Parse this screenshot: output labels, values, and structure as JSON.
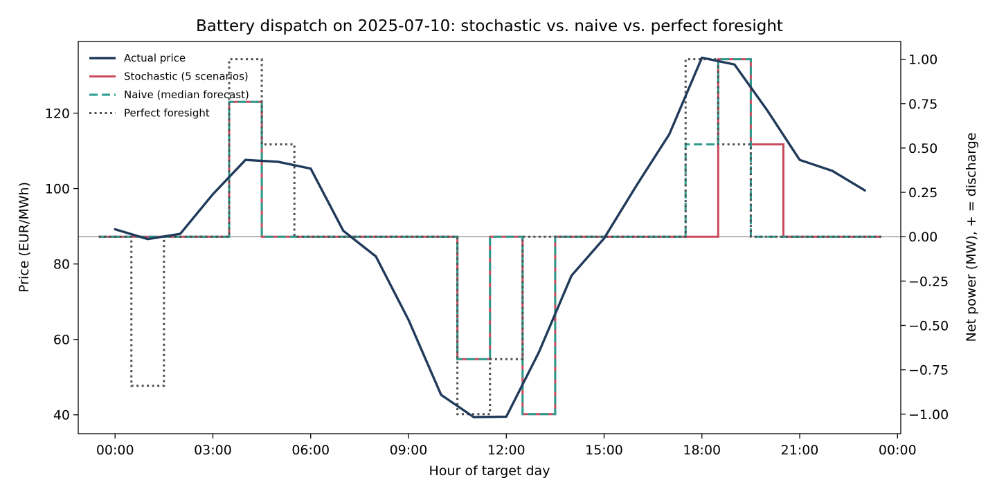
{
  "chart_data": {
    "type": "line",
    "title": "Battery dispatch on 2025-07-10: stochastic vs. naive vs. perfect foresight",
    "xlabel": "Hour of target day",
    "ylabel_left": "Price (EUR/MWh)",
    "ylabel_right": "Net power (MW), + = discharge",
    "x_ticks": [
      "00:00",
      "03:00",
      "06:00",
      "09:00",
      "12:00",
      "15:00",
      "18:00",
      "21:00",
      "00:00"
    ],
    "x_tick_hours": [
      0,
      3,
      6,
      9,
      12,
      15,
      18,
      21,
      24
    ],
    "xlim_hours": [
      -1.13,
      24.1
    ],
    "ylim_left": [
      35,
      139
    ],
    "y_ticks_left": [
      40,
      60,
      80,
      100,
      120
    ],
    "ylim_right": [
      -1.11,
      1.1
    ],
    "y_ticks_right": [
      -1.0,
      -0.75,
      -0.5,
      -0.25,
      0.0,
      0.25,
      0.5,
      0.75,
      1.0
    ],
    "y_tick_labels_right": [
      "−1.00",
      "−0.75",
      "−0.50",
      "−0.25",
      "0.00",
      "0.25",
      "0.50",
      "0.75",
      "1.00"
    ],
    "zero_line": 0,
    "grid": false,
    "legend_position": "top-left",
    "price": {
      "name": "Actual price",
      "color": "#1f3a5a",
      "hours": [
        0,
        1,
        2,
        3,
        4,
        5,
        6,
        7,
        8,
        9,
        10,
        11,
        12,
        13,
        14,
        15,
        16,
        17,
        18,
        19,
        20,
        21,
        22,
        23
      ],
      "values": [
        89.2,
        86.6,
        88.0,
        98.5,
        107.6,
        107.1,
        105.3,
        88.8,
        82.0,
        65.2,
        45.3,
        39.4,
        39.5,
        56.6,
        76.9,
        86.8,
        100.9,
        114.4,
        134.7,
        132.9,
        120.8,
        107.6,
        104.7,
        99.5
      ]
    },
    "dispatch": [
      {
        "name": "Stochastic (5 scenarios)",
        "color": "#c9485b",
        "style": "solid",
        "values": [
          0,
          0,
          0,
          0,
          0.76,
          0,
          0,
          0,
          0,
          0,
          0,
          -0.69,
          0,
          -1.0,
          0,
          0,
          0,
          0,
          0,
          1.0,
          0.52,
          0,
          0,
          0
        ]
      },
      {
        "name": "Naive (median forecast)",
        "color": "#2a9d8f",
        "style": "dashed",
        "values": [
          0,
          0,
          0,
          0,
          0.76,
          0,
          0,
          0,
          0,
          0,
          0,
          -0.69,
          0,
          -1.0,
          0,
          0,
          0,
          0,
          0.52,
          1.0,
          0,
          0,
          0,
          0
        ]
      },
      {
        "name": "Perfect foresight",
        "color": "#4d4d4d",
        "style": "dotted",
        "values": [
          0,
          -0.84,
          0,
          0,
          1.0,
          0.52,
          0,
          0,
          0,
          0,
          0,
          -1.0,
          -0.69,
          0,
          0,
          0,
          0,
          0,
          1.0,
          0.52,
          0,
          0,
          0,
          0
        ]
      }
    ]
  }
}
